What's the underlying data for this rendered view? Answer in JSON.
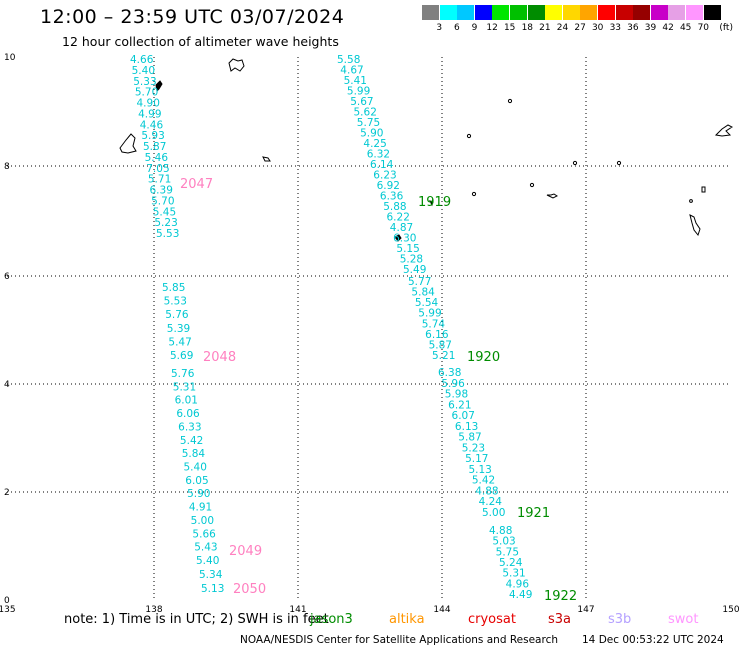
{
  "header": {
    "title": "12:00 – 23:59 UTC 03/07/2024",
    "subtitle": "12 hour collection of altimeter wave heights"
  },
  "colorbar": {
    "swatches": [
      "#808080",
      "#00ffff",
      "#00c8ff",
      "#0000ff",
      "#00e600",
      "#00c000",
      "#008c00",
      "#ffff00",
      "#ffd700",
      "#ffa500",
      "#ff0000",
      "#c80000",
      "#960000",
      "#c800c8",
      "#e6a0e6",
      "#ff96ff",
      "#000000"
    ],
    "labels": [
      "3",
      "6",
      "9",
      "12",
      "15",
      "18",
      "21",
      "24",
      "27",
      "30",
      "33",
      "36",
      "39",
      "42",
      "45",
      "70"
    ],
    "unit": "(ft)"
  },
  "axes": {
    "x_ticks": [
      "135",
      "138",
      "141",
      "144",
      "147",
      "150"
    ],
    "y_ticks": [
      "10",
      "8",
      "6",
      "4",
      "2",
      "0"
    ]
  },
  "tracks": [
    {
      "pass": "2047",
      "pass_color": "#ff80c0",
      "values": [
        "4.66",
        "5.40",
        "5.33",
        "5.70",
        "4.90",
        "4.99",
        "4.46",
        "5.93",
        "5.87",
        "5.46",
        "7.05",
        "5.71",
        "6.39",
        "5.70",
        "5.45",
        "5.23",
        "5.53"
      ]
    },
    {
      "pass": "2048",
      "pass_color": "#ff80c0",
      "values": [
        "5.85",
        "5.53",
        "5.76",
        "5.39",
        "5.47",
        "5.69"
      ]
    },
    {
      "pass": "2049",
      "pass_color": "#ff80c0",
      "values": [
        "5.76",
        "5.31",
        "6.01",
        "6.06",
        "6.33",
        "5.42",
        "5.84",
        "5.40",
        "6.05",
        "5.90",
        "4.91",
        "5.00",
        "5.66",
        "5.43",
        "5.40"
      ]
    },
    {
      "pass": "2050",
      "pass_color": "#ff80c0",
      "values": [
        "5.34",
        "5.13"
      ]
    },
    {
      "pass": "1919",
      "pass_color": "#008c00",
      "values": [
        "5.58",
        "4.67",
        "5.41",
        "5.99",
        "5.67",
        "5.62",
        "5.75",
        "5.90",
        "4.25",
        "6.32",
        "6.14",
        "6.23",
        "6.92",
        "6.36",
        "5.88",
        "6.22",
        "4.87",
        "6.30",
        "5.15",
        "5.28",
        "5.49"
      ]
    },
    {
      "pass": "1920",
      "pass_color": "#008c00",
      "values": [
        "5.77",
        "5.84",
        "5.54",
        "5.99",
        "5.74",
        "6.16",
        "5.87",
        "5.21"
      ]
    },
    {
      "pass": "1921",
      "pass_color": "#008c00",
      "values": [
        "6.38",
        "5.96",
        "5.98",
        "6.21",
        "6.07",
        "6.13",
        "5.87",
        "5.23",
        "5.17",
        "5.13",
        "5.42",
        "4.88",
        "4.24",
        "5.00"
      ]
    },
    {
      "pass": "1922",
      "pass_color": "#008c00",
      "values": [
        "4.88",
        "5.03",
        "5.75",
        "5.24",
        "5.31",
        "4.96",
        "4.49"
      ]
    }
  ],
  "footer": {
    "note": "note:  1) Time is in UTC; 2) SWH is in feet",
    "satellites": [
      {
        "name": "jason3",
        "color": "#008c00"
      },
      {
        "name": "altika",
        "color": "#ff9600"
      },
      {
        "name": "cryosat",
        "color": "#e60000"
      },
      {
        "name": "s3a",
        "color": "#c80000"
      },
      {
        "name": "s3b",
        "color": "#b4a0ff"
      },
      {
        "name": "swot",
        "color": "#ff96ff"
      }
    ],
    "credit": "NOAA/NESDIS Center for Satellite Applications and Research",
    "created": "14 Dec 00:53:22 UTC 2024"
  }
}
